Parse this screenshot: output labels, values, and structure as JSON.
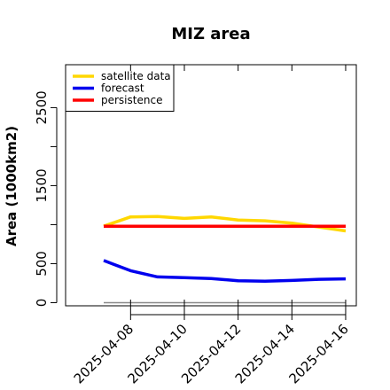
{
  "chart_data": {
    "type": "line",
    "title": "MIZ area",
    "xlabel": "",
    "ylabel": "Area (1000km2)",
    "x": [
      "2025-04-07",
      "2025-04-08",
      "2025-04-09",
      "2025-04-10",
      "2025-04-11",
      "2025-04-12",
      "2025-04-13",
      "2025-04-14",
      "2025-04-15",
      "2025-04-16"
    ],
    "x_ticks": [
      "2025-04-08",
      "2025-04-10",
      "2025-04-12",
      "2025-04-14",
      "2025-04-16"
    ],
    "x_tick_colors": [
      "#228b22",
      "#000000",
      "#000000",
      "#000000",
      "#000000"
    ],
    "y_ticks": [
      0,
      500,
      1500,
      2500
    ],
    "y_minor_ticks": [
      1000,
      2000
    ],
    "ylim": [
      -40,
      3050
    ],
    "reference_line": {
      "y": 0,
      "color": "#888888"
    },
    "legend": {
      "position": "top-left"
    },
    "grid": false,
    "series": [
      {
        "name": "satellite data",
        "color": "#ffd700",
        "values": [
          980,
          1100,
          1105,
          1080,
          1100,
          1060,
          1050,
          1020,
          970,
          920
        ]
      },
      {
        "name": "forecast",
        "color": "#0000ee",
        "values": [
          540,
          410,
          330,
          320,
          310,
          280,
          275,
          285,
          300,
          305
        ]
      },
      {
        "name": "persistence",
        "color": "#ff0000",
        "values": [
          980,
          980,
          980,
          980,
          980,
          980,
          980,
          980,
          980,
          980
        ]
      }
    ]
  }
}
